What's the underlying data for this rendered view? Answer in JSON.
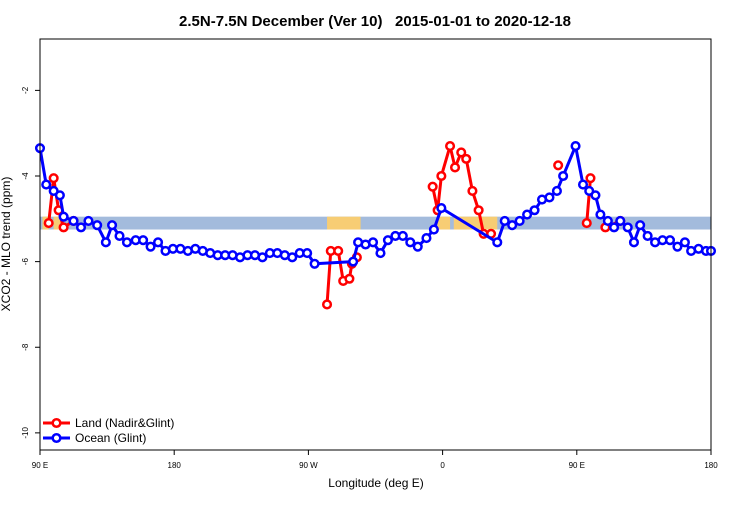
{
  "chart_data": {
    "type": "line",
    "title": "2.5N-7.5N December (Ver 10)   2015-01-01 to 2020-12-18",
    "xlabel": "Longitude (deg E)",
    "ylabel": "XCO2 - MLO trend (ppm)",
    "xlim": [
      -90,
      180
    ],
    "ylim": [
      -10.4,
      -0.8
    ],
    "x_ticks": [
      {
        "value": -90,
        "label": "90 E"
      },
      {
        "value": -36,
        "label": "180"
      },
      {
        "value": 18,
        "label": "90 W"
      },
      {
        "value": 72,
        "label": "0"
      },
      {
        "value": 126,
        "label": "90 E"
      },
      {
        "value": 180,
        "label": "180"
      }
    ],
    "y_ticks": [
      {
        "value": -2,
        "label": "-2"
      },
      {
        "value": -4,
        "label": "-4"
      },
      {
        "value": -6,
        "label": "-6"
      },
      {
        "value": -8,
        "label": "-8"
      },
      {
        "value": -10,
        "label": "-10"
      }
    ],
    "surface_band": {
      "y_top": -4.95,
      "y_bottom": -5.25,
      "ocean_color": "#a3bbdc",
      "land_color": "#f7cd74",
      "land_segments": [
        [
          -89,
          -86.5
        ],
        [
          -84.5,
          -81
        ],
        [
          25.5,
          39
        ],
        [
          70,
          75
        ],
        [
          76.5,
          94
        ],
        [
          137.5,
          138.5
        ]
      ]
    },
    "series": [
      {
        "name": "Land (Nadir&Glint)",
        "color": "#ff0000",
        "segments": [
          [
            [
              -86.5,
              -5.1
            ],
            [
              -84.5,
              -4.05
            ],
            [
              -82.5,
              -4.8
            ],
            [
              -80.5,
              -5.2
            ],
            [
              -76.5,
              -5.05
            ]
          ],
          [
            [
              25.5,
              -7.0
            ],
            [
              27,
              -5.75
            ],
            [
              30,
              -5.75
            ],
            [
              32,
              -6.45
            ],
            [
              34.5,
              -6.4
            ],
            [
              35.5,
              -6.05
            ],
            [
              37.5,
              -5.9
            ]
          ],
          [
            [
              68,
              -4.25
            ],
            [
              70,
              -4.8
            ],
            [
              71.5,
              -4.0
            ],
            [
              75,
              -3.3
            ],
            [
              77,
              -3.8
            ],
            [
              79.5,
              -3.45
            ],
            [
              81.5,
              -3.6
            ],
            [
              84,
              -4.35
            ],
            [
              86.5,
              -4.8
            ],
            [
              88.5,
              -5.35
            ],
            [
              91.5,
              -5.35
            ]
          ],
          [
            [
              118.5,
              -3.75
            ]
          ],
          [
            [
              130,
              -5.1
            ],
            [
              131.5,
              -4.05
            ]
          ],
          [
            [
              137.5,
              -5.2
            ],
            [
              143.5,
              -5.05
            ]
          ]
        ]
      },
      {
        "name": "Ocean (Glint)",
        "color": "#0000ff",
        "points": [
          [
            -90,
            -3.35
          ],
          [
            -87.5,
            -4.2
          ],
          [
            -84.5,
            -4.35
          ],
          [
            -82,
            -4.45
          ],
          [
            -80.5,
            -4.95
          ],
          [
            -76.5,
            -5.05
          ],
          [
            -73.5,
            -5.2
          ],
          [
            -70.5,
            -5.05
          ],
          [
            -67,
            -5.15
          ],
          [
            -63.5,
            -5.55
          ],
          [
            -61,
            -5.15
          ],
          [
            -58,
            -5.4
          ],
          [
            -55,
            -5.55
          ],
          [
            -51.5,
            -5.5
          ],
          [
            -48.5,
            -5.5
          ],
          [
            -45.5,
            -5.65
          ],
          [
            -42.5,
            -5.55
          ],
          [
            -39.5,
            -5.75
          ],
          [
            -36.5,
            -5.7
          ],
          [
            -33.5,
            -5.7
          ],
          [
            -30.5,
            -5.75
          ],
          [
            -27.5,
            -5.7
          ],
          [
            -24.5,
            -5.75
          ],
          [
            -21.5,
            -5.8
          ],
          [
            -18.5,
            -5.85
          ],
          [
            -15.5,
            -5.85
          ],
          [
            -12.5,
            -5.85
          ],
          [
            -9.5,
            -5.9
          ],
          [
            -6.5,
            -5.85
          ],
          [
            -3.5,
            -5.85
          ],
          [
            -0.5,
            -5.9
          ],
          [
            2.5,
            -5.8
          ],
          [
            5.5,
            -5.8
          ],
          [
            8.5,
            -5.85
          ],
          [
            11.5,
            -5.9
          ],
          [
            14.5,
            -5.8
          ],
          [
            17.5,
            -5.8
          ],
          [
            20.5,
            -6.05
          ],
          [
            36,
            -6.0
          ],
          [
            38,
            -5.55
          ],
          [
            41,
            -5.6
          ],
          [
            44,
            -5.55
          ],
          [
            47,
            -5.8
          ],
          [
            50,
            -5.5
          ],
          [
            53,
            -5.4
          ],
          [
            56,
            -5.4
          ],
          [
            59,
            -5.55
          ],
          [
            62,
            -5.65
          ],
          [
            65.5,
            -5.45
          ],
          [
            68.5,
            -5.25
          ],
          [
            71.5,
            -4.75
          ],
          [
            94,
            -5.55
          ],
          [
            97,
            -5.05
          ],
          [
            100,
            -5.15
          ],
          [
            103,
            -5.05
          ],
          [
            106,
            -4.9
          ],
          [
            109,
            -4.8
          ],
          [
            112,
            -4.55
          ],
          [
            115,
            -4.5
          ],
          [
            118,
            -4.35
          ],
          [
            120.5,
            -4.0
          ],
          [
            125.5,
            -3.3
          ],
          [
            128.5,
            -4.2
          ],
          [
            131,
            -4.35
          ],
          [
            133.5,
            -4.45
          ],
          [
            135.5,
            -4.9
          ],
          [
            138.5,
            -5.05
          ],
          [
            141,
            -5.2
          ],
          [
            143.5,
            -5.05
          ],
          [
            146.5,
            -5.2
          ],
          [
            149,
            -5.55
          ],
          [
            151.5,
            -5.15
          ],
          [
            154.5,
            -5.4
          ],
          [
            157.5,
            -5.55
          ],
          [
            160.5,
            -5.5
          ],
          [
            163.5,
            -5.5
          ],
          [
            166.5,
            -5.65
          ],
          [
            169.5,
            -5.55
          ],
          [
            172,
            -5.75
          ],
          [
            175,
            -5.7
          ],
          [
            178,
            -5.75
          ],
          [
            180,
            -5.75
          ]
        ]
      }
    ],
    "legend": {
      "position": "bottom-left",
      "entries": [
        "Land (Nadir&Glint)",
        "Ocean (Glint)"
      ]
    }
  }
}
